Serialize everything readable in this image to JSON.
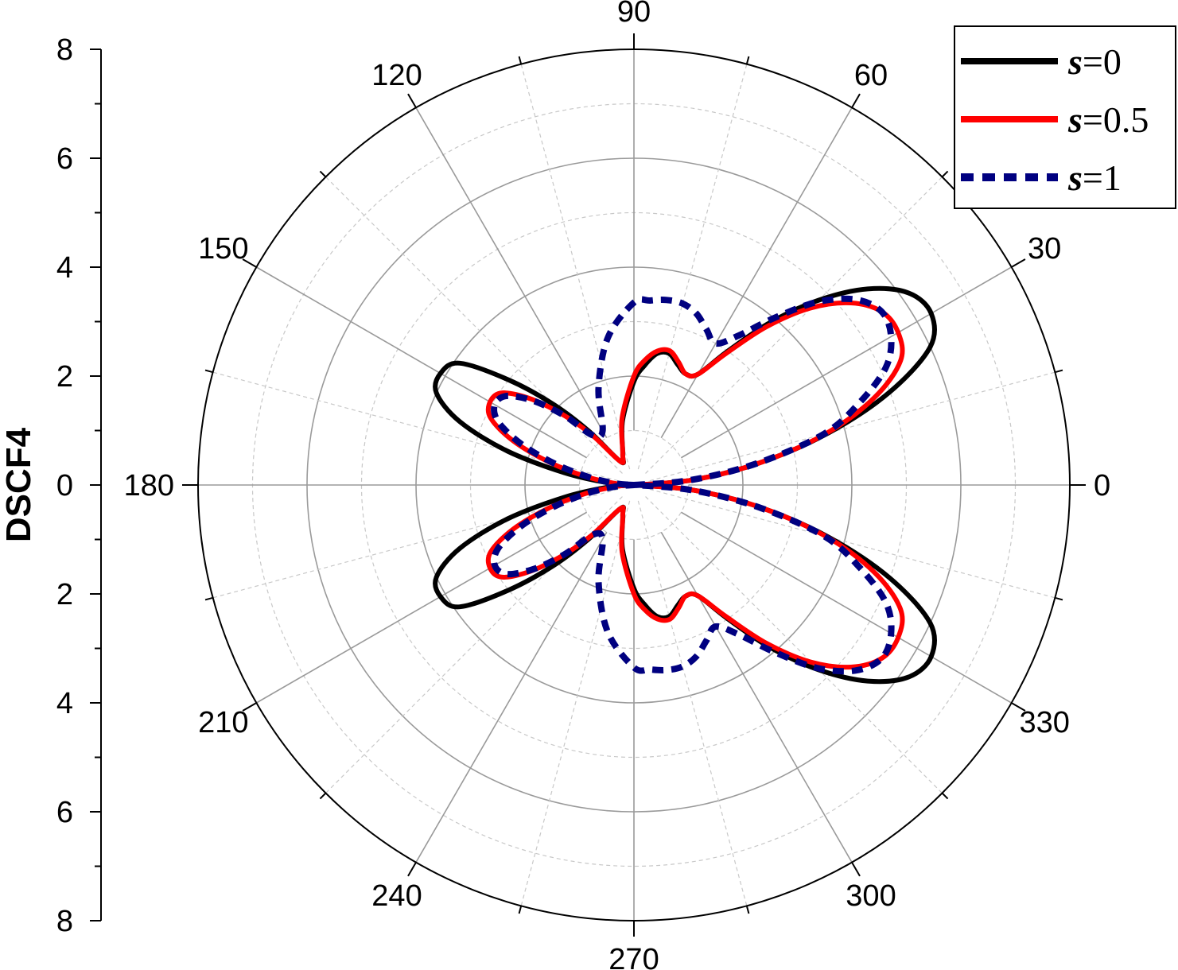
{
  "chart_data": {
    "type": "line",
    "subtype": "polar",
    "ylabel": "DSCF4",
    "radial_range": [
      0,
      8
    ],
    "radial_ticks": [
      "8",
      "6",
      "4",
      "2",
      "0",
      "2",
      "4",
      "6",
      "8"
    ],
    "angle_ticks": [
      "0",
      "30",
      "60",
      "90",
      "120",
      "150",
      "180",
      "210",
      "240",
      "270",
      "300",
      "330"
    ],
    "angle_values": [
      0,
      30,
      60,
      90,
      120,
      150,
      180,
      210,
      240,
      270,
      300,
      330
    ],
    "grid": true,
    "legend_position": "top-right",
    "series": [
      {
        "name": "s=0",
        "legend_prefix": "s",
        "legend_suffix": "=0",
        "color": "#000000",
        "dash": "solid",
        "angles": [
          0,
          5,
          10,
          15,
          20,
          25,
          30,
          35,
          40,
          45,
          50,
          55,
          60,
          65,
          70,
          75,
          80,
          85,
          90,
          100,
          110,
          120,
          130,
          135,
          140,
          145,
          150,
          155,
          160,
          165,
          170,
          175,
          180
        ],
        "r": [
          0,
          1.1,
          2.35,
          3.7,
          5.0,
          6.0,
          6.3,
          6.15,
          5.6,
          4.8,
          3.9,
          3.0,
          2.35,
          2.25,
          2.35,
          2.5,
          2.45,
          2.2,
          1.9,
          1.2,
          0.6,
          0.5,
          1.3,
          2.1,
          3.0,
          3.9,
          4.1,
          4.0,
          3.4,
          2.4,
          1.3,
          0.5,
          0
        ]
      },
      {
        "name": "s=0.5",
        "legend_prefix": "s",
        "legend_suffix": "=0.5",
        "color": "#ff0000",
        "dash": "solid",
        "angles": [
          0,
          5,
          10,
          15,
          20,
          25,
          30,
          35,
          40,
          45,
          50,
          55,
          60,
          65,
          70,
          75,
          80,
          85,
          90,
          100,
          110,
          120,
          130,
          135,
          140,
          145,
          150,
          155,
          160,
          165,
          170,
          175,
          180
        ],
        "r": [
          0,
          1.1,
          2.35,
          3.65,
          4.7,
          5.4,
          5.6,
          5.55,
          5.2,
          4.6,
          3.8,
          2.95,
          2.35,
          2.25,
          2.4,
          2.55,
          2.5,
          2.3,
          2.0,
          1.25,
          0.6,
          0.5,
          1.2,
          1.8,
          2.45,
          2.95,
          3.05,
          2.9,
          2.35,
          1.6,
          0.9,
          0.35,
          0
        ]
      },
      {
        "name": "s=1",
        "legend_prefix": "s",
        "legend_suffix": "=1",
        "color": "#000080",
        "dash": "dotted",
        "angles": [
          0,
          5,
          10,
          15,
          20,
          25,
          30,
          35,
          40,
          45,
          50,
          55,
          60,
          65,
          70,
          75,
          80,
          85,
          90,
          100,
          110,
          120,
          130,
          135,
          140,
          145,
          150,
          155,
          160,
          165,
          170,
          175,
          180
        ],
        "r": [
          0,
          1.05,
          2.3,
          3.6,
          4.4,
          5.1,
          5.45,
          5.55,
          5.3,
          4.75,
          4.0,
          3.35,
          3.0,
          3.15,
          3.35,
          3.45,
          3.45,
          3.4,
          3.35,
          2.75,
          1.9,
          1.15,
          1.2,
          1.8,
          2.4,
          2.85,
          2.95,
          2.75,
          2.2,
          1.5,
          0.85,
          0.35,
          0
        ]
      }
    ]
  }
}
